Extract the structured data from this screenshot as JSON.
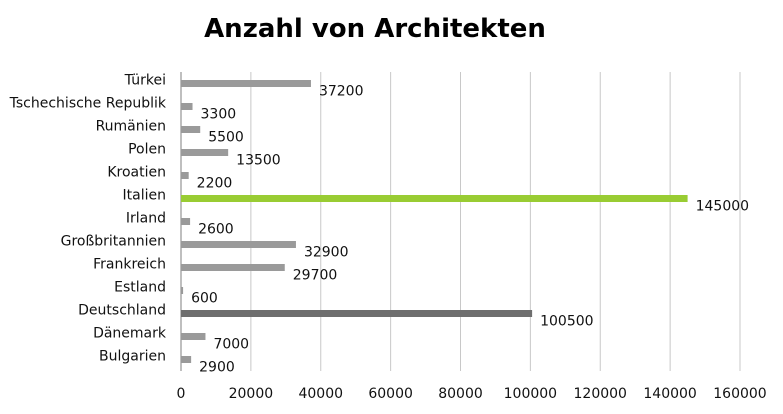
{
  "chart_data": {
    "type": "bar",
    "orientation": "horizontal",
    "title": "Anzahl von Architekten",
    "xlabel": "",
    "ylabel": "",
    "xlim": [
      0,
      160000
    ],
    "xticks": [
      "0",
      "20000",
      "40000",
      "60000",
      "80000",
      "100000",
      "120000",
      "140000",
      "160000"
    ],
    "grid": "vertical",
    "legend": "none",
    "categories": [
      "Türkei",
      "Tschechische Republik",
      "Rumänien",
      "Polen",
      "Kroatien",
      "Italien",
      "Irland",
      "Großbritannien",
      "Frankreich",
      "Estland",
      "Deutschland",
      "Dänemark",
      "Bulgarien"
    ],
    "values": [
      37200,
      3300,
      5500,
      13500,
      2200,
      145000,
      2600,
      32900,
      29700,
      600,
      100500,
      7000,
      2900
    ],
    "value_labels": [
      "37200",
      "3300",
      "5500",
      "13500",
      "2200",
      "145000",
      "2600",
      "32900",
      "29700",
      "600",
      "100500",
      "7000",
      "2900"
    ],
    "colors": {
      "default": "#9a9a9a",
      "highlight_italien": "#99cc33",
      "highlight_deutschland": "#6e6e6e",
      "grid": "#c8c8c8",
      "axis": "#7f7f7f"
    },
    "bar_colors": [
      "#9a9a9a",
      "#9a9a9a",
      "#9a9a9a",
      "#9a9a9a",
      "#9a9a9a",
      "#99cc33",
      "#9a9a9a",
      "#9a9a9a",
      "#9a9a9a",
      "#9a9a9a",
      "#6e6e6e",
      "#9a9a9a",
      "#9a9a9a"
    ]
  }
}
